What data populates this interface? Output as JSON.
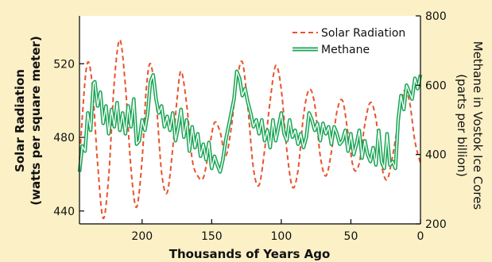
{
  "chart_data": {
    "type": "line",
    "title": "",
    "xlabel": "Thousands of Years Ago",
    "ylabel_left_line1": "Solar Radiation",
    "ylabel_left_line2": "(watts per square meter)",
    "ylabel_right_line1": "Methane in Vostok Ice Cores",
    "ylabel_right_line2": "(parts per billion)",
    "x_reversed": true,
    "xlim": [
      245,
      0
    ],
    "x_ticks": [
      200,
      150,
      100,
      50,
      0
    ],
    "y_left_lim": [
      433,
      546
    ],
    "y_left_ticks": [
      440,
      480,
      520
    ],
    "y_right_lim": [
      200,
      800
    ],
    "y_right_ticks": [
      200,
      400,
      600,
      800
    ],
    "grid": false,
    "legend_position": "top-right",
    "series": [
      {
        "name": "Solar Radiation",
        "axis": "left",
        "color": "#e8542c",
        "style": "dashed",
        "x": [
          245,
          240,
          236,
          232,
          228,
          224,
          220,
          216,
          212,
          208,
          204,
          200,
          197,
          194,
          190,
          186,
          182,
          178,
          175,
          172,
          168,
          164,
          160,
          156,
          152,
          148,
          144,
          140,
          136,
          132,
          128,
          124,
          120,
          116,
          112,
          108,
          104,
          100,
          96,
          92,
          88,
          84,
          80,
          76,
          72,
          68,
          64,
          60,
          56,
          52,
          48,
          44,
          40,
          36,
          32,
          28,
          24,
          20,
          16,
          12,
          8,
          4,
          0
        ],
        "values": [
          468,
          518,
          510,
          466,
          436,
          459,
          510,
          533,
          508,
          463,
          442,
          468,
          506,
          520,
          500,
          461,
          450,
          474,
          500,
          516,
          498,
          468,
          459,
          458,
          473,
          488,
          483,
          470,
          485,
          510,
          521,
          496,
          463,
          454,
          473,
          500,
          519,
          506,
          473,
          453,
          462,
          492,
          506,
          498,
          470,
          459,
          472,
          494,
          500,
          482,
          463,
          466,
          487,
          499,
          490,
          465,
          457,
          470,
          488,
          505,
          500,
          478,
          466
        ]
      },
      {
        "name": "Methane",
        "axis": "right",
        "color": "#1aa556",
        "style": "double",
        "x": [
          245,
          243,
          241,
          239,
          237,
          235,
          234,
          232,
          230,
          228,
          226,
          224,
          222,
          220,
          218,
          216,
          214,
          212,
          210,
          208,
          206,
          204,
          202,
          200,
          198,
          196,
          194,
          192,
          190,
          188,
          186,
          184,
          182,
          180,
          178,
          176,
          174,
          172,
          170,
          168,
          166,
          164,
          162,
          160,
          158,
          156,
          154,
          152,
          150,
          148,
          146,
          144,
          142,
          140,
          138,
          136,
          134,
          132,
          130,
          128,
          126,
          124,
          122,
          120,
          118,
          116,
          114,
          112,
          110,
          108,
          106,
          104,
          102,
          100,
          98,
          96,
          94,
          92,
          90,
          88,
          86,
          84,
          82,
          80,
          78,
          76,
          74,
          72,
          70,
          68,
          66,
          64,
          62,
          60,
          58,
          56,
          54,
          52,
          50,
          48,
          46,
          44,
          42,
          40,
          38,
          36,
          34,
          32,
          30,
          28,
          26,
          24,
          22,
          20,
          18,
          16,
          14,
          12,
          10,
          8,
          6,
          4,
          2,
          0
        ],
        "values": [
          350,
          425,
          410,
          520,
          470,
          605,
          610,
          540,
          580,
          490,
          540,
          460,
          530,
          480,
          550,
          470,
          520,
          460,
          540,
          480,
          560,
          430,
          440,
          500,
          470,
          520,
          610,
          630,
          560,
          520,
          540,
          480,
          510,
          470,
          520,
          440,
          480,
          530,
          450,
          500,
          410,
          480,
          420,
          460,
          395,
          430,
          385,
          435,
          360,
          395,
          370,
          350,
          385,
          440,
          480,
          520,
          560,
          640,
          620,
          570,
          590,
          550,
          520,
          480,
          500,
          460,
          500,
          440,
          470,
          420,
          500,
          440,
          480,
          520,
          460,
          440,
          500,
          450,
          470,
          430,
          460,
          420,
          450,
          520,
          500,
          470,
          490,
          440,
          490,
          460,
          480,
          430,
          480,
          460,
          430,
          440,
          470,
          410,
          460,
          400,
          430,
          470,
          390,
          440,
          400,
          380,
          420,
          370,
          470,
          380,
          360,
          460,
          370,
          380,
          360,
          500,
          570,
          530,
          600,
          580,
          560,
          620,
          590,
          630
        ]
      }
    ]
  }
}
